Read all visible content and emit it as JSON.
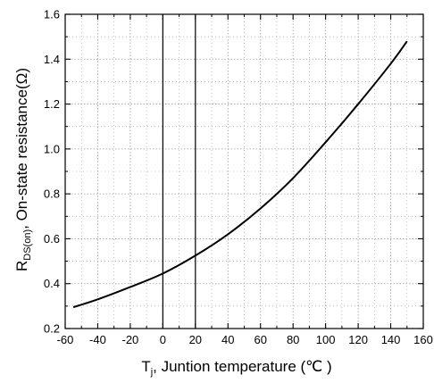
{
  "colors": {
    "background": "#ffffff",
    "axis": "#000000",
    "grid": "#9a9a9a",
    "curve": "#000000"
  },
  "chart_data": {
    "type": "line",
    "title": "",
    "xlabel": {
      "symbol": "T",
      "subscript": "j",
      "text": ", Juntion temperature (℃ )"
    },
    "ylabel": {
      "symbol": "R",
      "subscript": "DS(on)",
      "text": ", On-state resistance(Ω)"
    },
    "xlim": [
      -60,
      160
    ],
    "ylim": [
      0.2,
      1.6
    ],
    "x_ticks": [
      -60,
      -40,
      -20,
      0,
      20,
      40,
      60,
      80,
      100,
      120,
      140,
      160
    ],
    "y_ticks": [
      0.2,
      0.4,
      0.6,
      0.8,
      1.0,
      1.2,
      1.4,
      1.6
    ],
    "x_tick_labels": [
      "-60",
      "-40",
      "-20",
      "0",
      "20",
      "40",
      "60",
      "80",
      "100",
      "120",
      "140",
      "160"
    ],
    "y_tick_labels": [
      "0.2",
      "0.4",
      "0.6",
      "0.8",
      "1.0",
      "1.2",
      "1.4",
      "1.6"
    ],
    "grid": true,
    "reference_lines_x": [
      0,
      20
    ],
    "series": [
      {
        "x": [
          -55,
          -40,
          -20,
          0,
          20,
          40,
          60,
          80,
          100,
          120,
          140,
          150
        ],
        "y": [
          0.295,
          0.33,
          0.385,
          0.445,
          0.525,
          0.62,
          0.735,
          0.87,
          1.03,
          1.2,
          1.38,
          1.48
        ]
      }
    ]
  }
}
